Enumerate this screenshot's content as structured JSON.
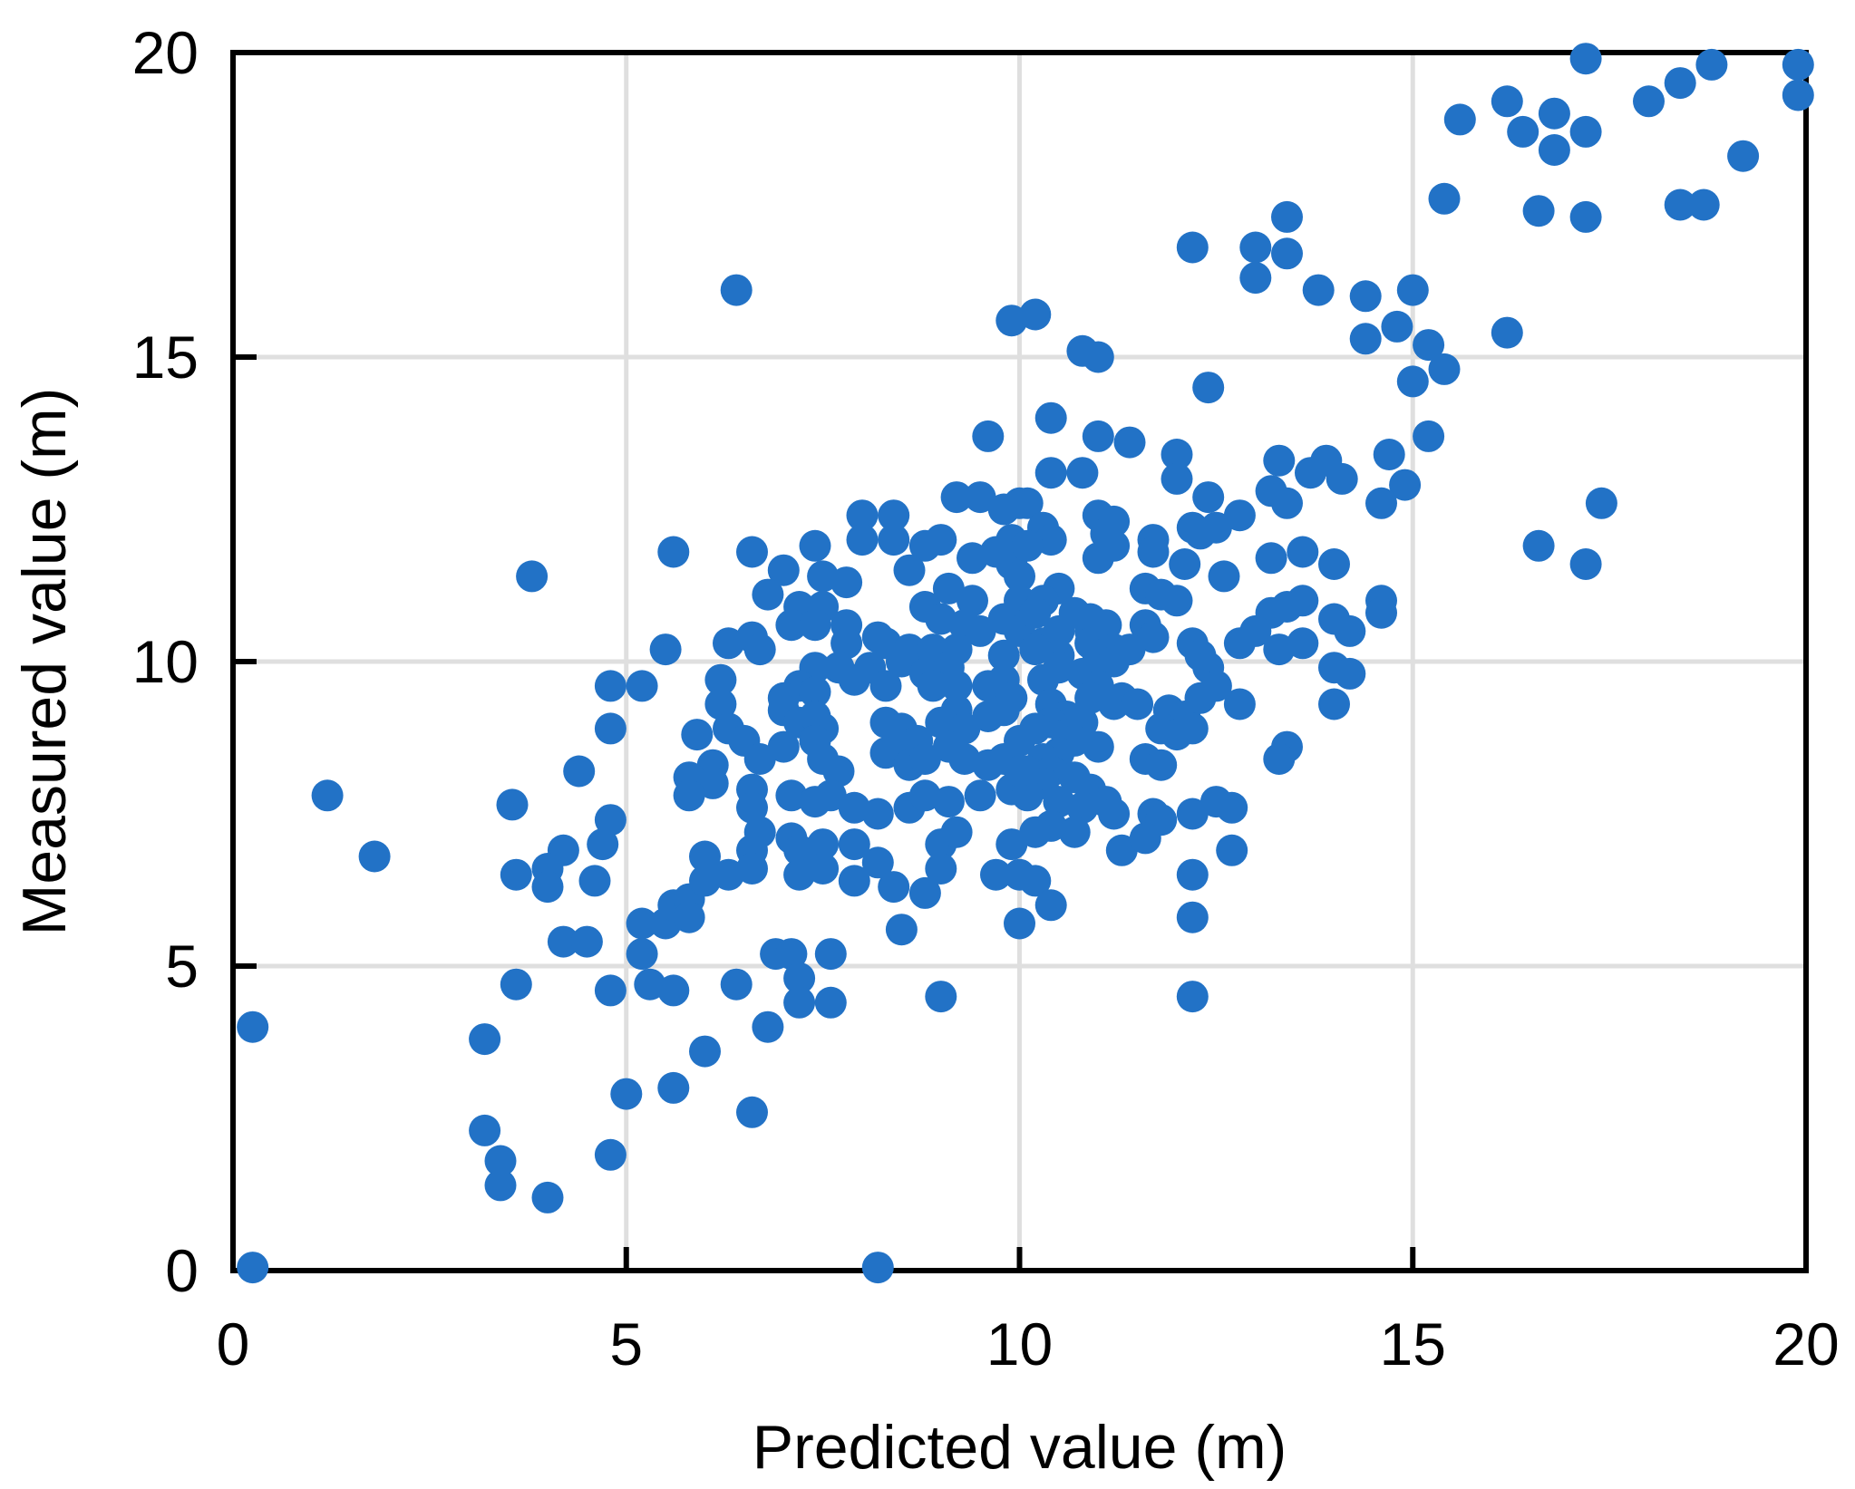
{
  "chart_data": {
    "type": "scatter",
    "title": "",
    "xlabel": "Predicted value (m)",
    "ylabel": "Measured value (m)",
    "xlim": [
      0,
      20
    ],
    "ylim": [
      0,
      20
    ],
    "x_ticks": [
      0,
      5,
      10,
      15,
      20
    ],
    "y_ticks": [
      0,
      5,
      10,
      15,
      20
    ],
    "grid": true,
    "legend": "none",
    "marker": "circle",
    "marker_color": "#2272C6",
    "grid_color": "#DFDFDF",
    "axis_color": "#000000",
    "background_color": "#FFFFFF",
    "points": [
      [
        6.4,
        16.1
      ],
      [
        9.9,
        15.6
      ],
      [
        9.6,
        13.7
      ],
      [
        10.2,
        15.7
      ],
      [
        12.2,
        16.8
      ],
      [
        13.0,
        16.8
      ],
      [
        13.4,
        17.3
      ],
      [
        13.4,
        16.7
      ],
      [
        13.0,
        16.3
      ],
      [
        13.8,
        16.1
      ],
      [
        14.4,
        16.0
      ],
      [
        14.8,
        15.5
      ],
      [
        14.4,
        15.3
      ],
      [
        10.8,
        15.1
      ],
      [
        11.0,
        15.0
      ],
      [
        12.4,
        14.5
      ],
      [
        10.4,
        14.0
      ],
      [
        11.0,
        13.7
      ],
      [
        11.4,
        13.6
      ],
      [
        15.0,
        14.6
      ],
      [
        17.2,
        19.9
      ],
      [
        18.8,
        19.8
      ],
      [
        19.9,
        19.8
      ],
      [
        19.9,
        19.3
      ],
      [
        18.4,
        19.5
      ],
      [
        18.0,
        19.2
      ],
      [
        16.2,
        19.2
      ],
      [
        15.6,
        18.9
      ],
      [
        16.8,
        19.0
      ],
      [
        16.4,
        18.7
      ],
      [
        17.2,
        18.7
      ],
      [
        16.8,
        18.4
      ],
      [
        19.2,
        18.3
      ],
      [
        15.4,
        17.6
      ],
      [
        16.6,
        17.4
      ],
      [
        17.2,
        17.3
      ],
      [
        18.4,
        17.5
      ],
      [
        18.7,
        17.5
      ],
      [
        15.0,
        16.1
      ],
      [
        16.2,
        15.4
      ],
      [
        15.2,
        15.2
      ],
      [
        15.4,
        14.8
      ],
      [
        15.2,
        13.7
      ],
      [
        12.0,
        13.4
      ],
      [
        13.3,
        13.3
      ],
      [
        13.9,
        13.3
      ],
      [
        14.7,
        13.4
      ],
      [
        14.9,
        12.9
      ],
      [
        3.8,
        11.4
      ],
      [
        1.2,
        7.8
      ],
      [
        3.55,
        7.65
      ],
      [
        4.8,
        9.6
      ],
      [
        4.8,
        8.9
      ],
      [
        4.4,
        8.2
      ],
      [
        4.8,
        7.4
      ],
      [
        4.7,
        7.0
      ],
      [
        4.2,
        6.9
      ],
      [
        1.8,
        6.8
      ],
      [
        8.0,
        12.4
      ],
      [
        8.4,
        12.4
      ],
      [
        9.2,
        12.7
      ],
      [
        9.5,
        12.7
      ],
      [
        9.8,
        12.5
      ],
      [
        8.0,
        12.0
      ],
      [
        8.4,
        12.0
      ],
      [
        7.4,
        11.9
      ],
      [
        8.8,
        11.9
      ],
      [
        9.0,
        12.0
      ],
      [
        5.6,
        11.8
      ],
      [
        6.6,
        11.8
      ],
      [
        7.0,
        11.5
      ],
      [
        9.4,
        11.7
      ],
      [
        9.7,
        11.8
      ],
      [
        9.9,
        12.0
      ],
      [
        8.6,
        11.5
      ],
      [
        7.5,
        11.4
      ],
      [
        7.8,
        11.3
      ],
      [
        6.8,
        11.1
      ],
      [
        9.1,
        11.2
      ],
      [
        9.4,
        11.0
      ],
      [
        9.9,
        11.6
      ],
      [
        7.2,
        10.9
      ],
      [
        7.5,
        10.9
      ],
      [
        7.1,
        10.6
      ],
      [
        7.4,
        10.6
      ],
      [
        7.8,
        10.6
      ],
      [
        8.8,
        10.9
      ],
      [
        9.0,
        10.7
      ],
      [
        9.3,
        10.6
      ],
      [
        9.8,
        10.7
      ],
      [
        9.5,
        10.5
      ],
      [
        7.8,
        10.3
      ],
      [
        8.2,
        10.4
      ],
      [
        8.3,
        10.3
      ],
      [
        8.6,
        10.2
      ],
      [
        8.9,
        10.2
      ],
      [
        9.2,
        10.2
      ],
      [
        9.8,
        10.1
      ],
      [
        6.3,
        10.3
      ],
      [
        6.6,
        10.4
      ],
      [
        6.7,
        10.2
      ],
      [
        5.5,
        10.2
      ],
      [
        5.2,
        9.6
      ],
      [
        6.2,
        9.7
      ],
      [
        6.2,
        9.3
      ],
      [
        7.4,
        9.9
      ],
      [
        7.2,
        9.6
      ],
      [
        7.4,
        9.5
      ],
      [
        7.0,
        9.4
      ],
      [
        7.7,
        9.9
      ],
      [
        7.9,
        9.7
      ],
      [
        8.1,
        9.9
      ],
      [
        8.3,
        9.6
      ],
      [
        8.5,
        10.0
      ],
      [
        8.8,
        9.8
      ],
      [
        9.1,
        9.9
      ],
      [
        8.9,
        9.6
      ],
      [
        9.2,
        9.6
      ],
      [
        9.6,
        9.6
      ],
      [
        9.8,
        9.7
      ],
      [
        9.9,
        9.4
      ],
      [
        5.9,
        8.8
      ],
      [
        6.3,
        8.9
      ],
      [
        6.5,
        8.7
      ],
      [
        7.0,
        9.2
      ],
      [
        7.2,
        9.0
      ],
      [
        7.4,
        9.1
      ],
      [
        7.5,
        8.9
      ],
      [
        7.4,
        8.7
      ],
      [
        8.3,
        9.0
      ],
      [
        8.5,
        8.9
      ],
      [
        8.7,
        8.7
      ],
      [
        9.0,
        9.0
      ],
      [
        9.2,
        9.2
      ],
      [
        9.3,
        8.9
      ],
      [
        9.6,
        9.1
      ],
      [
        9.8,
        9.2
      ],
      [
        6.1,
        8.3
      ],
      [
        5.8,
        8.1
      ],
      [
        6.1,
        8.0
      ],
      [
        6.7,
        8.4
      ],
      [
        7.0,
        8.6
      ],
      [
        7.5,
        8.4
      ],
      [
        7.7,
        8.2
      ],
      [
        8.3,
        8.5
      ],
      [
        8.5,
        8.6
      ],
      [
        8.6,
        8.3
      ],
      [
        8.8,
        8.4
      ],
      [
        9.1,
        8.6
      ],
      [
        9.3,
        8.4
      ],
      [
        9.6,
        8.3
      ],
      [
        9.8,
        8.4
      ],
      [
        5.8,
        7.8
      ],
      [
        6.6,
        7.9
      ],
      [
        6.6,
        7.6
      ],
      [
        7.1,
        7.8
      ],
      [
        7.4,
        7.7
      ],
      [
        7.6,
        7.8
      ],
      [
        7.9,
        7.6
      ],
      [
        8.2,
        7.5
      ],
      [
        8.6,
        7.6
      ],
      [
        8.8,
        7.8
      ],
      [
        9.1,
        7.7
      ],
      [
        9.5,
        7.8
      ],
      [
        9.9,
        7.9
      ],
      [
        6.7,
        7.2
      ],
      [
        6.6,
        6.9
      ],
      [
        7.1,
        7.1
      ],
      [
        7.2,
        6.9
      ],
      [
        7.5,
        7.0
      ],
      [
        7.9,
        7.0
      ],
      [
        9.0,
        7.0
      ],
      [
        9.2,
        7.2
      ],
      [
        9.9,
        7.0
      ],
      [
        6.0,
        6.8
      ],
      [
        10.4,
        13.1
      ],
      [
        10.8,
        13.1
      ],
      [
        10.1,
        12.6
      ],
      [
        10.3,
        12.2
      ],
      [
        10.4,
        12.0
      ],
      [
        10.1,
        11.9
      ],
      [
        11.0,
        12.4
      ],
      [
        11.2,
        12.3
      ],
      [
        11.0,
        11.7
      ],
      [
        11.2,
        11.9
      ],
      [
        11.1,
        12.1
      ],
      [
        12.0,
        13.0
      ],
      [
        12.4,
        12.7
      ],
      [
        12.8,
        12.4
      ],
      [
        13.2,
        12.8
      ],
      [
        13.4,
        12.6
      ],
      [
        13.7,
        13.1
      ],
      [
        14.1,
        13.0
      ],
      [
        14.6,
        12.6
      ],
      [
        12.2,
        12.2
      ],
      [
        12.3,
        12.1
      ],
      [
        12.5,
        12.2
      ],
      [
        11.7,
        12.0
      ],
      [
        11.7,
        11.8
      ],
      [
        12.1,
        11.6
      ],
      [
        12.6,
        11.4
      ],
      [
        13.2,
        11.7
      ],
      [
        13.6,
        11.8
      ],
      [
        14.0,
        11.6
      ],
      [
        11.6,
        11.2
      ],
      [
        11.8,
        11.1
      ],
      [
        12.0,
        11.0
      ],
      [
        11.6,
        10.6
      ],
      [
        11.7,
        10.4
      ],
      [
        12.2,
        10.3
      ],
      [
        12.3,
        10.1
      ],
      [
        12.4,
        9.9
      ],
      [
        13.2,
        10.8
      ],
      [
        13.4,
        10.9
      ],
      [
        13.6,
        11.0
      ],
      [
        13.0,
        10.5
      ],
      [
        12.8,
        10.3
      ],
      [
        13.3,
        10.2
      ],
      [
        13.6,
        10.3
      ],
      [
        14.0,
        10.7
      ],
      [
        14.2,
        10.5
      ],
      [
        14.6,
        11.0
      ],
      [
        14.6,
        10.8
      ],
      [
        10.0,
        12.6
      ],
      [
        10.0,
        11.4
      ],
      [
        10.0,
        11.0
      ],
      [
        10.0,
        10.5
      ],
      [
        10.5,
        11.2
      ],
      [
        10.3,
        11.0
      ],
      [
        10.2,
        10.8
      ],
      [
        10.7,
        10.8
      ],
      [
        10.3,
        10.3
      ],
      [
        10.5,
        10.5
      ],
      [
        10.9,
        10.7
      ],
      [
        10.9,
        10.5
      ],
      [
        10.9,
        10.3
      ],
      [
        11.1,
        10.6
      ],
      [
        10.2,
        10.2
      ],
      [
        10.5,
        10.1
      ],
      [
        11.0,
        10.1
      ],
      [
        11.2,
        10.2
      ],
      [
        11.4,
        10.2
      ],
      [
        11.2,
        10.0
      ],
      [
        10.3,
        9.7
      ],
      [
        10.5,
        9.9
      ],
      [
        10.8,
        9.8
      ],
      [
        11.0,
        9.6
      ],
      [
        10.9,
        9.4
      ],
      [
        11.2,
        9.3
      ],
      [
        11.3,
        9.4
      ],
      [
        11.5,
        9.3
      ],
      [
        10.4,
        9.3
      ],
      [
        10.6,
        9.1
      ],
      [
        10.4,
        9.0
      ],
      [
        10.2,
        8.9
      ],
      [
        10.6,
        8.8
      ],
      [
        10.8,
        9.0
      ],
      [
        10.7,
        8.7
      ],
      [
        11.0,
        8.6
      ],
      [
        10.5,
        8.5
      ],
      [
        11.9,
        9.2
      ],
      [
        12.1,
        9.1
      ],
      [
        11.8,
        8.9
      ],
      [
        12.0,
        8.8
      ],
      [
        12.2,
        8.9
      ],
      [
        12.3,
        9.4
      ],
      [
        12.5,
        9.6
      ],
      [
        12.8,
        9.3
      ],
      [
        14.0,
        9.9
      ],
      [
        14.2,
        9.8
      ],
      [
        14.0,
        9.3
      ],
      [
        13.4,
        8.6
      ],
      [
        10.3,
        8.4
      ],
      [
        10.1,
        8.2
      ],
      [
        10.4,
        8.2
      ],
      [
        10.7,
        8.1
      ],
      [
        10.3,
        8.0
      ],
      [
        10.1,
        7.8
      ],
      [
        10.5,
        7.7
      ],
      [
        10.9,
        7.9
      ],
      [
        11.1,
        7.7
      ],
      [
        10.8,
        7.6
      ],
      [
        11.2,
        7.5
      ],
      [
        11.6,
        8.4
      ],
      [
        11.8,
        8.3
      ],
      [
        11.7,
        7.5
      ],
      [
        11.8,
        7.4
      ],
      [
        12.2,
        7.5
      ],
      [
        12.5,
        7.7
      ],
      [
        12.7,
        7.6
      ],
      [
        13.3,
        8.4
      ],
      [
        10.0,
        8.7
      ],
      [
        10.0,
        8.2
      ],
      [
        11.3,
        6.9
      ],
      [
        12.7,
        6.9
      ],
      [
        11.6,
        7.1
      ],
      [
        10.7,
        7.2
      ],
      [
        10.4,
        7.3
      ],
      [
        10.2,
        7.2
      ],
      [
        17.4,
        12.6
      ],
      [
        16.6,
        11.9
      ],
      [
        17.2,
        11.6
      ],
      [
        3.6,
        6.5
      ],
      [
        4.0,
        6.6
      ],
      [
        4.0,
        6.3
      ],
      [
        4.6,
        6.4
      ],
      [
        4.2,
        5.4
      ],
      [
        4.5,
        5.4
      ],
      [
        0.25,
        4.0
      ],
      [
        3.6,
        4.7
      ],
      [
        4.8,
        4.6
      ],
      [
        3.2,
        3.8
      ],
      [
        3.2,
        2.3
      ],
      [
        3.4,
        1.8
      ],
      [
        3.4,
        1.4
      ],
      [
        4.0,
        1.2
      ],
      [
        4.8,
        1.9
      ],
      [
        0.25,
        0.05
      ],
      [
        5.2,
        5.7
      ],
      [
        5.5,
        5.7
      ],
      [
        5.6,
        6.0
      ],
      [
        5.8,
        6.1
      ],
      [
        5.8,
        5.8
      ],
      [
        6.0,
        6.4
      ],
      [
        6.3,
        6.5
      ],
      [
        6.6,
        6.6
      ],
      [
        7.2,
        6.5
      ],
      [
        7.5,
        6.6
      ],
      [
        7.9,
        6.4
      ],
      [
        8.2,
        6.7
      ],
      [
        8.4,
        6.3
      ],
      [
        8.5,
        5.6
      ],
      [
        8.8,
        6.2
      ],
      [
        9.0,
        6.6
      ],
      [
        9.7,
        6.5
      ],
      [
        5.2,
        5.2
      ],
      [
        5.3,
        4.7
      ],
      [
        5.6,
        4.6
      ],
      [
        6.4,
        4.7
      ],
      [
        6.9,
        5.2
      ],
      [
        7.1,
        5.2
      ],
      [
        7.2,
        4.8
      ],
      [
        7.6,
        5.2
      ],
      [
        7.2,
        4.4
      ],
      [
        7.6,
        4.4
      ],
      [
        6.8,
        4.0
      ],
      [
        6.0,
        3.6
      ],
      [
        9.0,
        4.5
      ],
      [
        5.6,
        3.0
      ],
      [
        5.0,
        2.9
      ],
      [
        6.6,
        2.6
      ],
      [
        8.2,
        0.05
      ],
      [
        10.2,
        6.4
      ],
      [
        10.4,
        6.0
      ],
      [
        10.0,
        5.7
      ],
      [
        10.0,
        6.5
      ],
      [
        12.2,
        6.5
      ],
      [
        12.2,
        5.8
      ],
      [
        12.2,
        4.5
      ]
    ]
  }
}
